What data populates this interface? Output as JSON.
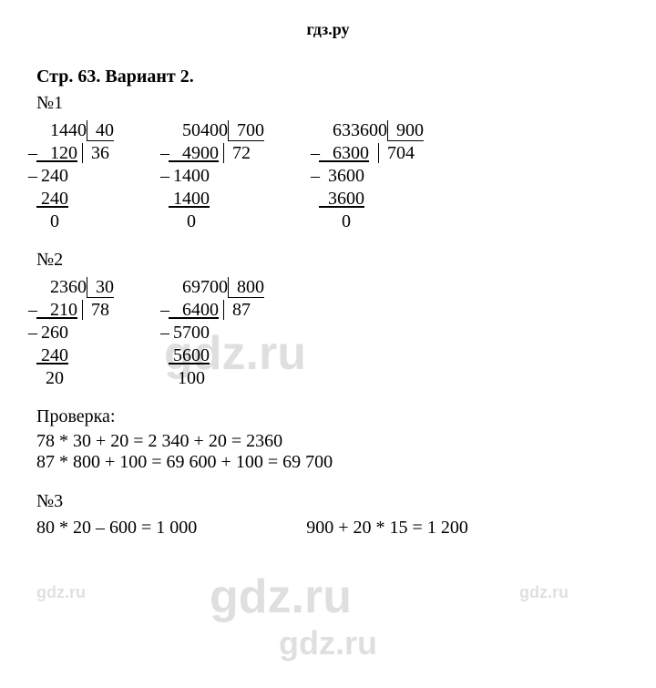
{
  "header": "гдз.ру",
  "title": "Стр. 63. Вариант 2.",
  "task1": {
    "num": "№1",
    "divs": [
      {
        "dividend": "1440",
        "divisor": "40",
        "quotient": "36",
        "steps": [
          "120",
          "240",
          "240",
          "0"
        ],
        "pad": [
          "   ",
          " ",
          " ",
          "   "
        ]
      },
      {
        "dividend": "50400",
        "divisor": "700",
        "quotient": "72",
        "steps": [
          "4900",
          "1400",
          "1400",
          "0"
        ],
        "pad": [
          "   ",
          " ",
          " ",
          "    "
        ]
      },
      {
        "dividend": "633600",
        "divisor": "900",
        "quotient": "704",
        "steps": [
          "6300",
          "3600",
          "3600",
          "0"
        ],
        "pad": [
          "   ",
          "  ",
          "  ",
          "     "
        ]
      }
    ]
  },
  "task2": {
    "num": "№2",
    "divs": [
      {
        "dividend": "2360",
        "divisor": "30",
        "quotient": "78",
        "steps": [
          "210",
          "260",
          "240",
          "20"
        ],
        "pad": [
          "   ",
          " ",
          " ",
          "  "
        ]
      },
      {
        "dividend": "69700",
        "divisor": "800",
        "quotient": "87",
        "steps": [
          "6400",
          "5700",
          "5600",
          "100"
        ],
        "pad": [
          "   ",
          " ",
          " ",
          "  "
        ]
      }
    ],
    "check_label": "Проверка:",
    "check1": "78 * 30 + 20 = 2 340 + 20 = 2360",
    "check2": "87 * 800 + 100 = 69 600 + 100 = 69 700"
  },
  "task3": {
    "num": "№3",
    "eq1": "80 * 20 – 600 = 1 000",
    "eq2": "900 + 20 * 15 = 1 200"
  },
  "watermark": "gdz.ru"
}
